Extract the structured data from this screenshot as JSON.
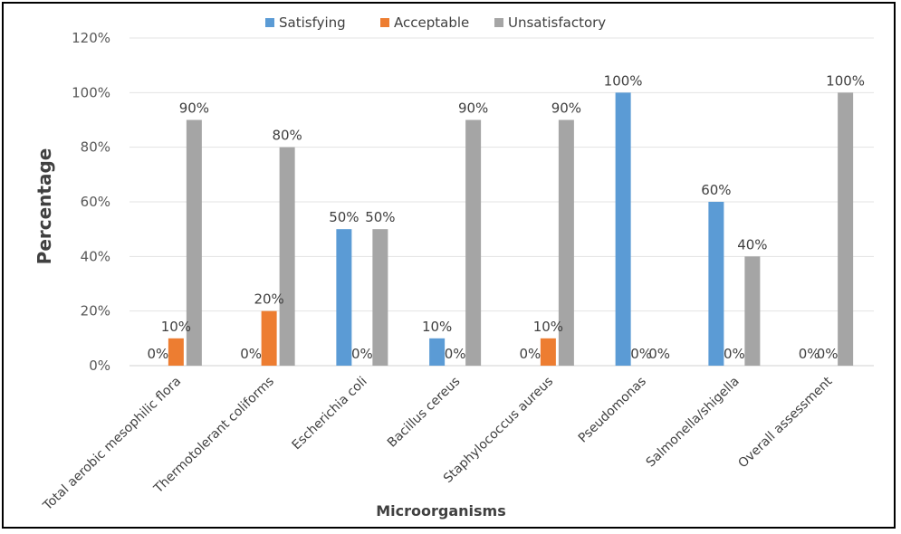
{
  "chart_data": {
    "type": "bar",
    "title": "",
    "xlabel": "Microorganisms",
    "ylabel": "Percentage",
    "ylim": [
      0,
      120
    ],
    "yticks": [
      "0%",
      "20%",
      "40%",
      "60%",
      "80%",
      "100%",
      "120%"
    ],
    "grid": true,
    "legend_position": "top",
    "categories": [
      "Total aerobic mesophilic flora",
      "Thermotolerant coliforms",
      "Escherichia coli",
      "Bacillus cereus",
      "Staphylococcus aureus",
      "Pseudomonas",
      "Salmonella/shigella",
      "Overall assessment"
    ],
    "series": [
      {
        "name": "Satisfying",
        "color": "#5B9BD5",
        "values": [
          0,
          0,
          50,
          10,
          0,
          100,
          60,
          0
        ],
        "labels": [
          "0%",
          "0%",
          "50%",
          "10%",
          "0%",
          "100%",
          "60%",
          "0%"
        ]
      },
      {
        "name": "Acceptable",
        "color": "#ED7D31",
        "values": [
          10,
          20,
          0,
          0,
          10,
          0,
          0,
          0
        ],
        "labels": [
          "10%",
          "20%",
          "0%",
          "0%",
          "10%",
          "0%",
          "0%",
          "0%"
        ]
      },
      {
        "name": "Unsatisfactory",
        "color": "#A5A5A5",
        "values": [
          90,
          80,
          50,
          90,
          90,
          0,
          40,
          100
        ],
        "labels": [
          "90%",
          "80%",
          "50%",
          "90%",
          "90%",
          "0%",
          "40%",
          "100%"
        ]
      }
    ]
  }
}
